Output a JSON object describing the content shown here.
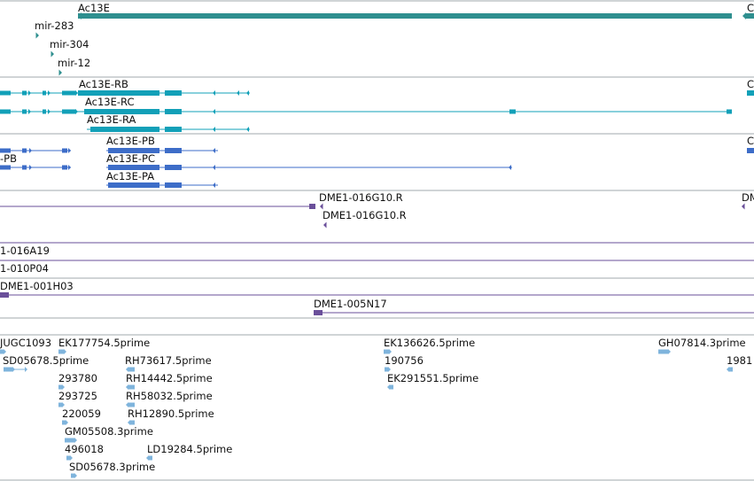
{
  "colors": {
    "gene": "#2f8f8f",
    "transcript_teal": "#12a0b8",
    "transcript_blue": "#3d6dc8",
    "clone": "#6a4f9a",
    "est": "#7fb4dc",
    "divider": "#a0a8ae"
  },
  "tracks": {
    "gene": {
      "items": [
        {
          "id": "g1",
          "label": "Ac13E"
        },
        {
          "id": "g2",
          "label": "C"
        },
        {
          "id": "g3",
          "label": "mir-283"
        },
        {
          "id": "g4",
          "label": "mir-304"
        },
        {
          "id": "g5",
          "label": "mir-12"
        }
      ]
    },
    "transcripts_a": {
      "items": [
        {
          "id": "ta1",
          "label": "Ac13E-RB"
        },
        {
          "id": "ta2",
          "label": "Ac13E-RC"
        },
        {
          "id": "ta3",
          "label": "Ac13E-RA"
        },
        {
          "id": "ta4",
          "label": "C"
        }
      ]
    },
    "transcripts_b": {
      "items": [
        {
          "id": "tb1",
          "label": "Ac13E-PB"
        },
        {
          "id": "tb2",
          "label": "Ac13E-PC"
        },
        {
          "id": "tb3",
          "label": "Ac13E-PA"
        },
        {
          "id": "tb4",
          "label": "-PB"
        },
        {
          "id": "tb5",
          "label": "C"
        }
      ]
    },
    "clones": {
      "items": [
        {
          "id": "c1",
          "label": "DME1-016G10.R"
        },
        {
          "id": "c2",
          "label": "DME1-016G10.R"
        },
        {
          "id": "c3",
          "label": "DM"
        },
        {
          "id": "c4",
          "label": "1-016A19"
        },
        {
          "id": "c5",
          "label": "1-010P04"
        },
        {
          "id": "c6",
          "label": "DME1-001H03"
        },
        {
          "id": "c7",
          "label": "DME1-005N17"
        }
      ]
    },
    "ests": {
      "items": [
        {
          "id": "e1",
          "label": "JUGC1093"
        },
        {
          "id": "e2",
          "label": "EK177754.5prime"
        },
        {
          "id": "e3",
          "label": "EK136626.5prime"
        },
        {
          "id": "e4",
          "label": "GH07814.3prime"
        },
        {
          "id": "e5",
          "label": "SD05678.5prime"
        },
        {
          "id": "e6",
          "label": "RH73617.5prime"
        },
        {
          "id": "e7",
          "label": "190756"
        },
        {
          "id": "e8",
          "label": "1981"
        },
        {
          "id": "e9",
          "label": "293780"
        },
        {
          "id": "e10",
          "label": "RH14442.5prime"
        },
        {
          "id": "e11",
          "label": "EK291551.5prime"
        },
        {
          "id": "e12",
          "label": "293725"
        },
        {
          "id": "e13",
          "label": "RH58032.5prime"
        },
        {
          "id": "e14",
          "label": "220059"
        },
        {
          "id": "e15",
          "label": "RH12890.5prime"
        },
        {
          "id": "e16",
          "label": "GM05508.3prime"
        },
        {
          "id": "e17",
          "label": "496018"
        },
        {
          "id": "e18",
          "label": "LD19284.5prime"
        },
        {
          "id": "e19",
          "label": "SD05678.3prime"
        }
      ]
    }
  }
}
